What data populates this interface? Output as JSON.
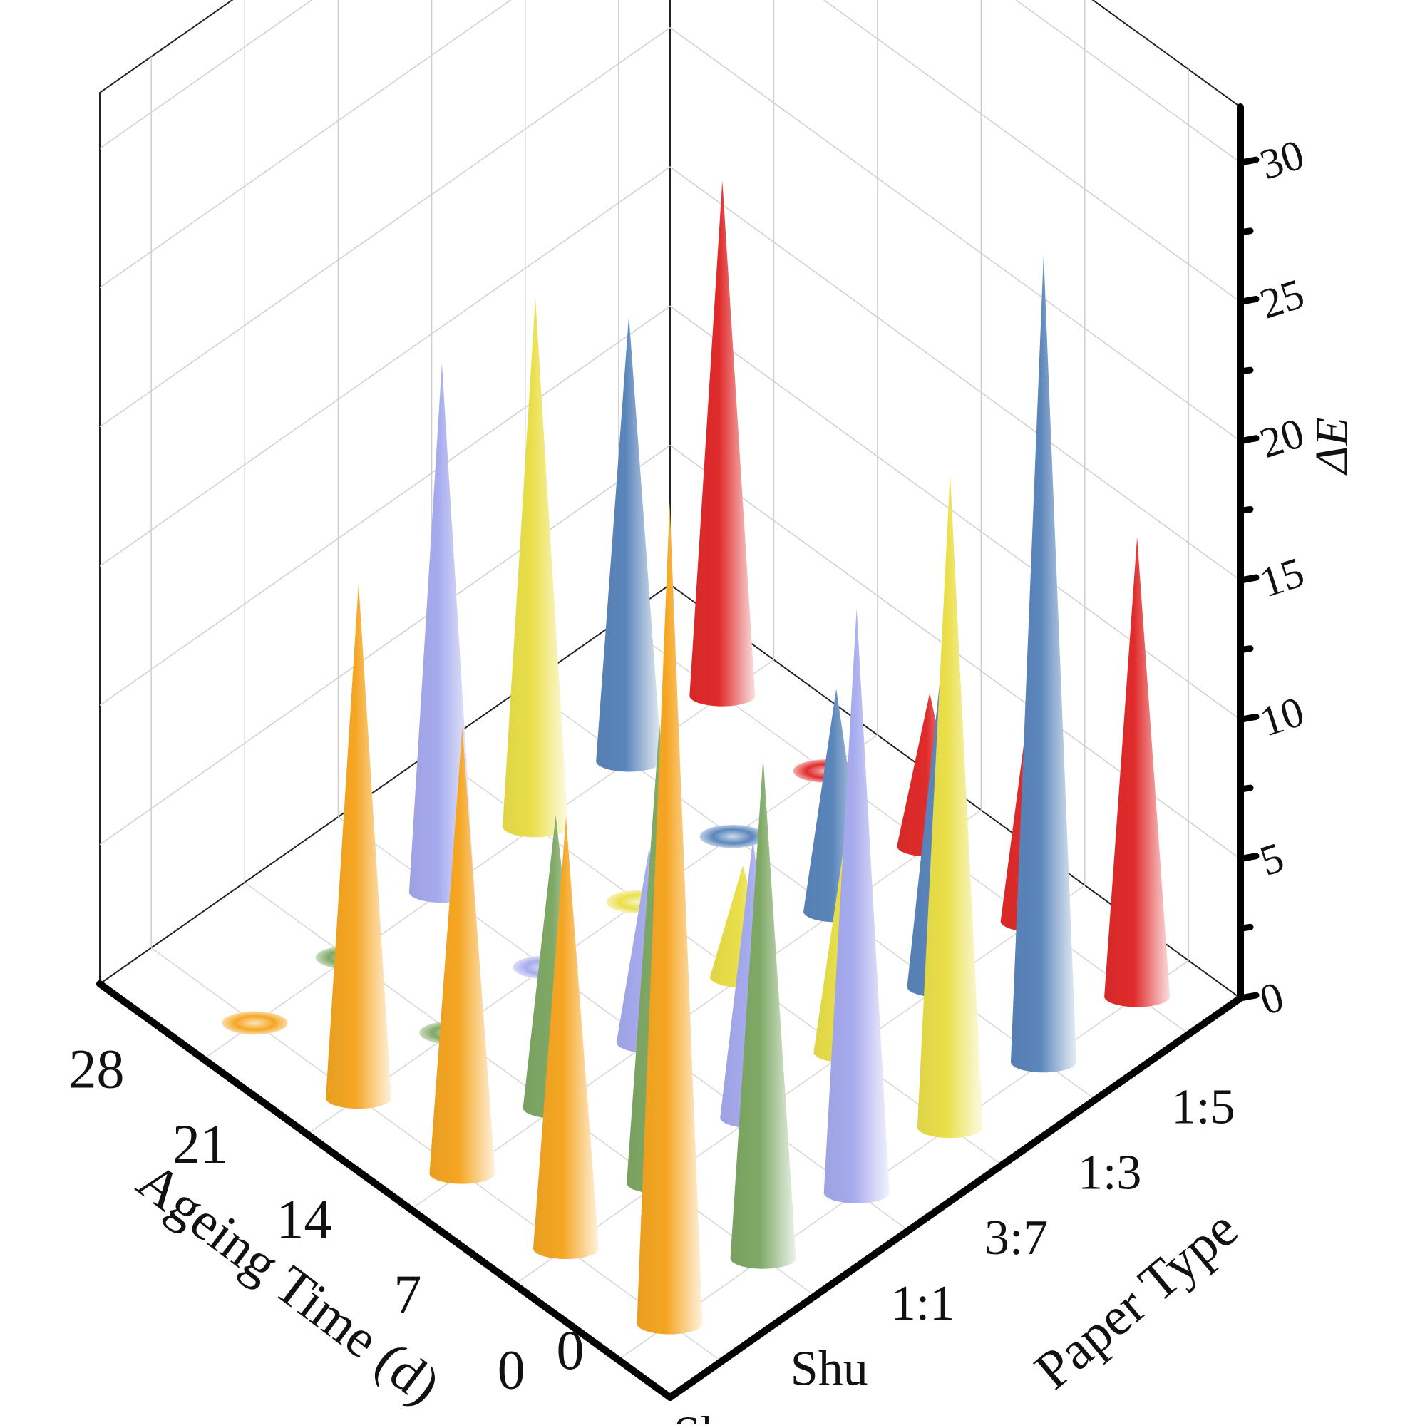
{
  "chart_data": {
    "type": "3d-cone",
    "x_axis": {
      "title": "Ageing Time (d)",
      "tick_labels": [
        "28",
        "21",
        "14",
        "7",
        "0"
      ],
      "values": [
        28,
        21,
        14,
        7,
        0
      ],
      "origin_label": "0"
    },
    "y_axis": {
      "title": "Paper Type",
      "categories": [
        "Sheng",
        "Shu",
        "1:1",
        "3:7",
        "1:3",
        "1:5"
      ]
    },
    "z_axis": {
      "title": "ΔE",
      "ticks": [
        "0",
        "5",
        "10",
        "15",
        "20",
        "25",
        "30"
      ],
      "range": [
        0,
        32
      ]
    },
    "grid": true,
    "series": [
      {
        "paper": "Sheng",
        "color": "#F5A623",
        "values": [
          0.3,
          18.5,
          16,
          15.5,
          29.5
        ]
      },
      {
        "paper": "Shu",
        "color": "#7FA865",
        "values": [
          0.3,
          0.3,
          10.5,
          16.5,
          18
        ]
      },
      {
        "paper": "1:1",
        "color": "#A6ABEE",
        "values": [
          19,
          0.3,
          7,
          10,
          21
        ]
      },
      {
        "paper": "3:7",
        "color": "#EADF4A",
        "values": [
          19,
          0.3,
          4,
          8,
          23.5
        ]
      },
      {
        "paper": "1:3",
        "color": "#5B86BB",
        "values": [
          16,
          0.3,
          8,
          11,
          29
        ]
      },
      {
        "paper": "1:5",
        "color": "#E02B2B",
        "values": [
          18.5,
          0.3,
          5.5,
          9,
          16.5
        ]
      }
    ]
  }
}
